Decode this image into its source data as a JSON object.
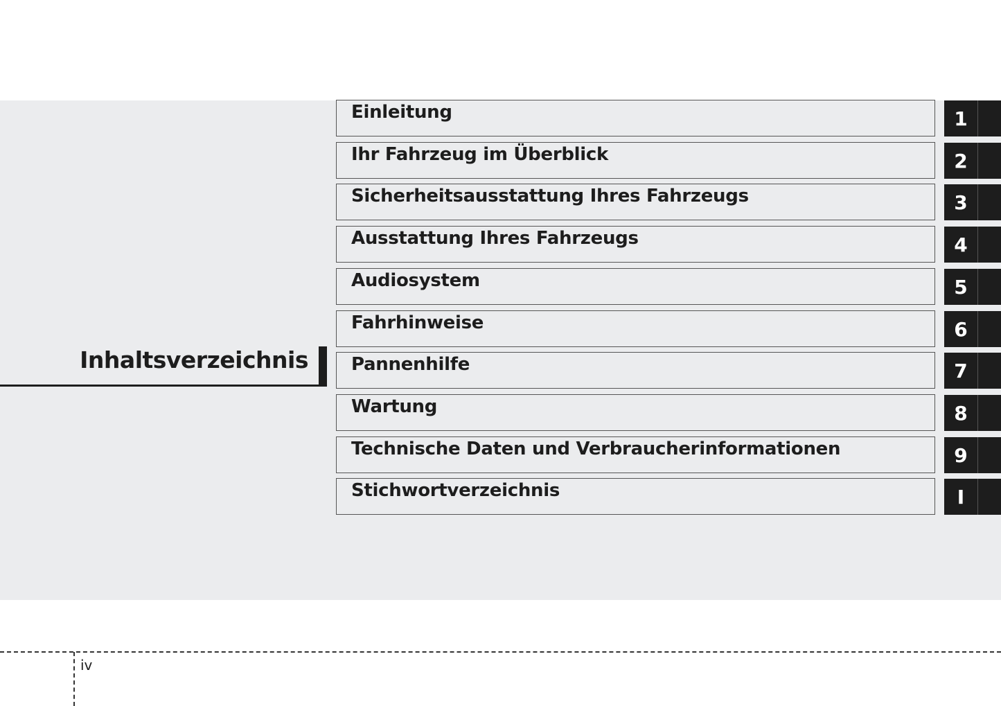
{
  "title": "Inhaltsverzeichnis",
  "chapters": [
    {
      "label": "Einleitung",
      "tab": "1"
    },
    {
      "label": "Ihr Fahrzeug im Überblick",
      "tab": "2"
    },
    {
      "label": "Sicherheitsausstattung Ihres Fahrzeugs",
      "tab": "3"
    },
    {
      "label": "Ausstattung Ihres Fahrzeugs",
      "tab": "4"
    },
    {
      "label": "Audiosystem",
      "tab": "5"
    },
    {
      "label": "Fahrhinweise",
      "tab": "6"
    },
    {
      "label": "Pannenhilfe",
      "tab": "7"
    },
    {
      "label": "Wartung",
      "tab": "8"
    },
    {
      "label": "Technische Daten und Verbraucherinformationen",
      "tab": "9"
    },
    {
      "label": "Stichwortverzeichnis",
      "tab": "I"
    }
  ],
  "page_number": "iv",
  "colors": {
    "band": "#ebecee",
    "tab": "#1d1d1d"
  }
}
